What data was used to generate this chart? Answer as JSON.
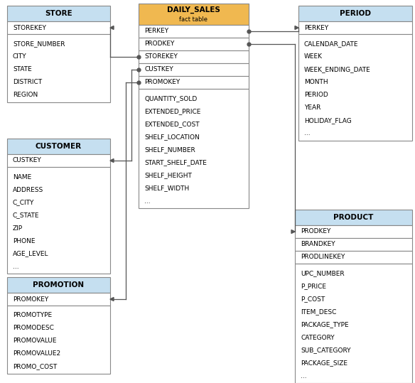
{
  "fact_table": {
    "title": "DAILY_SALES",
    "subtitle": "fact table",
    "header_color": "#F0B850",
    "key_fields": [
      "PERKEY",
      "PRODKEY",
      "STOREKEY",
      "CUSTKEY",
      "PROMOKEY"
    ],
    "data_fields": [
      "QUANTITY_SOLD",
      "EXTENDED_PRICE",
      "EXTENDED_COST",
      "SHELF_LOCATION",
      "SHELF_NUMBER",
      "START_SHELF_DATE",
      "SHELF_HEIGHT",
      "SHELF_WIDTH",
      "..."
    ]
  },
  "dim_tables": [
    {
      "name": "STORE",
      "header_color": "#C5DFF0",
      "key_fields": [
        "STOREKEY"
      ],
      "data_fields": [
        "STORE_NUMBER",
        "CITY",
        "STATE",
        "DISTRICT",
        "REGION"
      ]
    },
    {
      "name": "CUSTOMER",
      "header_color": "#C5DFF0",
      "key_fields": [
        "CUSTKEY"
      ],
      "data_fields": [
        "NAME",
        "ADDRESS",
        "C_CITY",
        "C_STATE",
        "ZIP",
        "PHONE",
        "AGE_LEVEL",
        "..."
      ]
    },
    {
      "name": "PROMOTION",
      "header_color": "#C5DFF0",
      "key_fields": [
        "PROMOKEY"
      ],
      "data_fields": [
        "PROMOTYPE",
        "PROMODESC",
        "PROMOVALUE",
        "PROMOVALUE2",
        "PROMO_COST"
      ]
    },
    {
      "name": "PERIOD",
      "header_color": "#C5DFF0",
      "key_fields": [
        "PERKEY"
      ],
      "data_fields": [
        "CALENDAR_DATE",
        "WEEK",
        "WEEK_ENDING_DATE",
        "MONTH",
        "PERIOD",
        "YEAR",
        "HOLIDAY_FLAG",
        "..."
      ]
    },
    {
      "name": "PRODUCT",
      "header_color": "#C5DFF0",
      "key_fields": [
        "PRODKEY",
        "BRANDKEY",
        "PRODLINEKEY"
      ],
      "data_fields": [
        "UPC_NUMBER",
        "P_PRICE",
        "P_COST",
        "ITEM_DESC",
        "PACKAGE_TYPE",
        "CATEGORY",
        "SUB_CATEGORY",
        "PACKAGE_SIZE",
        "..."
      ]
    }
  ],
  "header_fontsize": 7.5,
  "field_fontsize": 6.5,
  "font_family": "DejaVu Sans",
  "background_color": "#FFFFFF",
  "border_color": "#888888",
  "line_color": "#555555"
}
